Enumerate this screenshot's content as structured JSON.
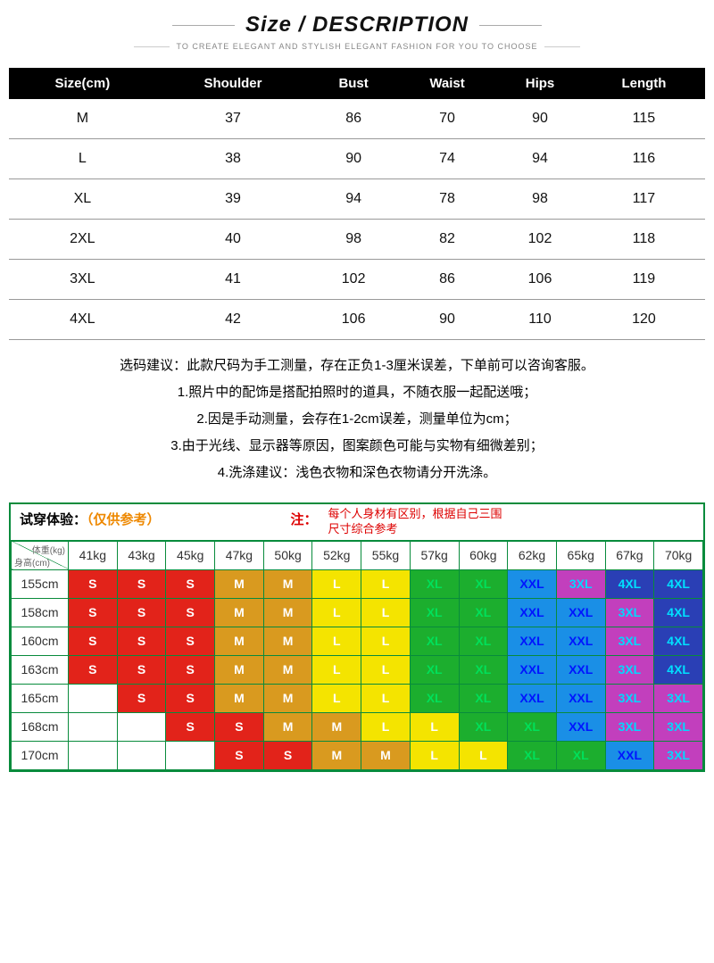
{
  "header": {
    "title": "Size / DESCRIPTION",
    "subtitle": "TO CREATE ELEGANT AND STYLISH ELEGANT FASHION FOR YOU TO CHOOSE"
  },
  "size_table": {
    "columns": [
      "Size(cm)",
      "Shoulder",
      "Bust",
      "Waist",
      "Hips",
      "Length"
    ],
    "rows": [
      [
        "M",
        "37",
        "86",
        "70",
        "90",
        "115"
      ],
      [
        "L",
        "38",
        "90",
        "74",
        "94",
        "116"
      ],
      [
        "XL",
        "39",
        "94",
        "78",
        "98",
        "117"
      ],
      [
        "2XL",
        "40",
        "98",
        "82",
        "102",
        "118"
      ],
      [
        "3XL",
        "41",
        "102",
        "86",
        "106",
        "119"
      ],
      [
        "4XL",
        "42",
        "106",
        "90",
        "110",
        "120"
      ]
    ]
  },
  "notes": {
    "lines": [
      "选码建议：此款尺码为手工测量，存在正负1-3厘米误差，下单前可以咨询客服。",
      "1.照片中的配饰是搭配拍照时的道具，不随衣服一起配送哦；",
      "2.因是手动测量，会存在1-2cm误差，测量单位为cm；",
      "3.由于光线、显示器等原因，图案颜色可能与实物有细微差别；",
      "4.洗涤建议：浅色衣物和深色衣物请分开洗涤。"
    ]
  },
  "fit": {
    "title_a": "试穿体验：",
    "title_b": "（仅供参考）",
    "note_label": "注：",
    "note_text": "每个人身材有区别，根据自己三围尺寸综合参考",
    "corner_top": "体重(kg)",
    "corner_bottom": "身高(cm)",
    "weights": [
      "41kg",
      "43kg",
      "45kg",
      "47kg",
      "50kg",
      "52kg",
      "55kg",
      "57kg",
      "60kg",
      "62kg",
      "65kg",
      "67kg",
      "70kg"
    ],
    "heights": [
      "155cm",
      "158cm",
      "160cm",
      "163cm",
      "165cm",
      "168cm",
      "170cm"
    ],
    "colors": {
      "S": "#e2231a",
      "M": "#d99a1f",
      "L": "#f4e400",
      "XL": "#1cae2e",
      "XXL": "#1a8fe6",
      "3XL": "#c23fbd",
      "4XL": "#2a3fb5"
    },
    "text_colors": {
      "S": "#ffffff",
      "M": "#ffffff",
      "L": "#ffffff",
      "XL": "#00e05a",
      "XXL": "#0015ff",
      "3XL": "#00d9ff",
      "4XL": "#00e0ff"
    },
    "grid": [
      [
        "S",
        "S",
        "S",
        "M",
        "M",
        "L",
        "L",
        "XL",
        "XL",
        "XXL",
        "3XL",
        "4XL",
        "4XL"
      ],
      [
        "S",
        "S",
        "S",
        "M",
        "M",
        "L",
        "L",
        "XL",
        "XL",
        "XXL",
        "XXL",
        "3XL",
        "4XL"
      ],
      [
        "S",
        "S",
        "S",
        "M",
        "M",
        "L",
        "L",
        "XL",
        "XL",
        "XXL",
        "XXL",
        "3XL",
        "4XL"
      ],
      [
        "S",
        "S",
        "S",
        "M",
        "M",
        "L",
        "L",
        "XL",
        "XL",
        "XXL",
        "XXL",
        "3XL",
        "4XL"
      ],
      [
        "",
        "S",
        "S",
        "M",
        "M",
        "L",
        "L",
        "XL",
        "XL",
        "XXL",
        "XXL",
        "3XL",
        "3XL"
      ],
      [
        "",
        "",
        "S",
        "S",
        "M",
        "M",
        "L",
        "L",
        "XL",
        "XL",
        "XXL",
        "3XL",
        "3XL"
      ],
      [
        "",
        "",
        "",
        "S",
        "S",
        "M",
        "M",
        "L",
        "L",
        "XL",
        "XL",
        "XXL",
        "3XL"
      ]
    ]
  }
}
